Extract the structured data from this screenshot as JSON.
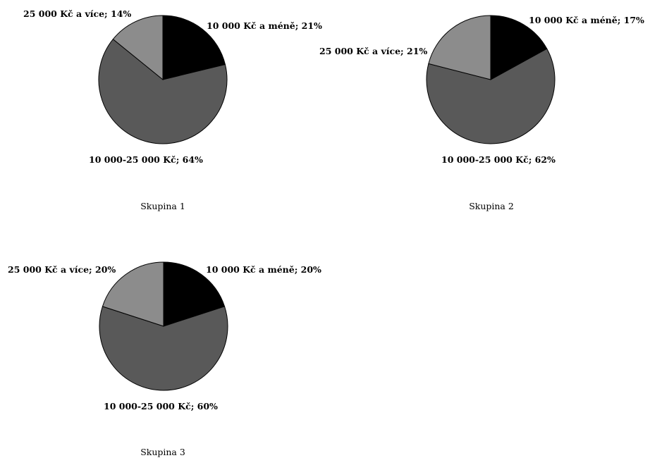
{
  "chart_data": [
    {
      "type": "pie",
      "title": "Skupina 1",
      "categories": [
        "10 000 Kč a méně",
        "10 000-25 000 Kč",
        "25 000 Kč a více"
      ],
      "values": [
        21,
        64,
        14
      ],
      "labels": [
        "10 000 Kč a méně; 21%",
        "10 000-25 000 Kč; 64%",
        "25 000 Kč a více; 14%"
      ],
      "colors": [
        "#000000",
        "#595959",
        "#8c8c8c"
      ]
    },
    {
      "type": "pie",
      "title": "Skupina 2",
      "categories": [
        "10 000 Kč a méně",
        "10 000-25 000 Kč",
        "25 000 Kč a více"
      ],
      "values": [
        17,
        62,
        21
      ],
      "labels": [
        "10 000 Kč a méně; 17%",
        "10 000-25 000 Kč; 62%",
        "25 000 Kč a více; 21%"
      ],
      "colors": [
        "#000000",
        "#595959",
        "#8c8c8c"
      ]
    },
    {
      "type": "pie",
      "title": "Skupina 3",
      "categories": [
        "10 000 Kč a méně",
        "10 000-25 000 Kč",
        "25 000 Kč a více"
      ],
      "values": [
        20,
        60,
        20
      ],
      "labels": [
        "10 000 Kč a méně; 20%",
        "10 000-25 000 Kč; 60%",
        "25 000 Kč a více; 20%"
      ],
      "colors": [
        "#000000",
        "#595959",
        "#8c8c8c"
      ]
    }
  ]
}
